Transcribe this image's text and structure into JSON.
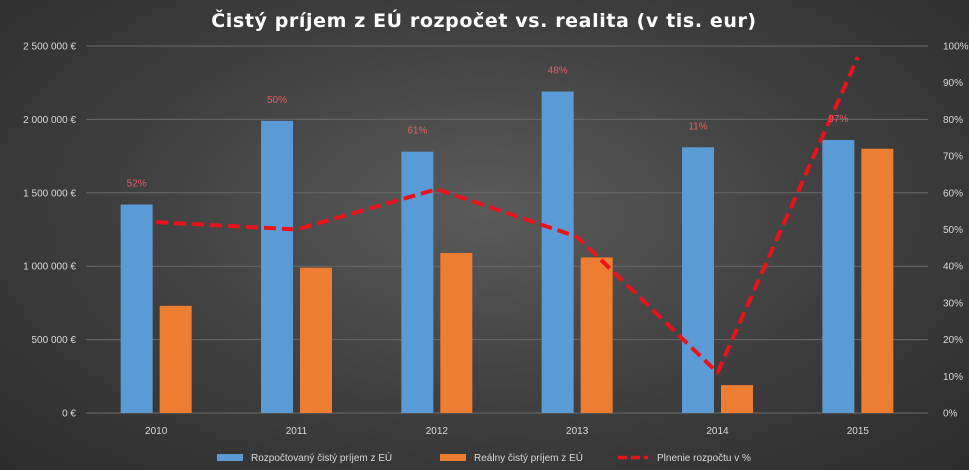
{
  "chart_data": {
    "type": "bar",
    "title": "Čistý príjem z EÚ rozpočet vs. realita (v tis. eur)",
    "categories": [
      "2010",
      "2011",
      "2012",
      "2013",
      "2014",
      "2015"
    ],
    "series": [
      {
        "name": "Rozpočtovaný čistý príjem z EÚ",
        "type": "bar",
        "axis": "left",
        "color": "#5b9bd5",
        "values": [
          1420000,
          1990000,
          1780000,
          2190000,
          1810000,
          1860000
        ]
      },
      {
        "name": "Reálny čistý príjem z EÚ",
        "type": "bar",
        "axis": "left",
        "color": "#ed7d31",
        "values": [
          730000,
          990000,
          1090000,
          1060000,
          190000,
          1800000
        ]
      },
      {
        "name": "Plnenie rozpočtu v %",
        "type": "line",
        "style": "dashed",
        "axis": "right",
        "color": "#e8141c",
        "values": [
          52,
          50,
          61,
          48,
          11,
          97
        ],
        "labels": [
          "52%",
          "50%",
          "61%",
          "48%",
          "11%",
          "97%"
        ]
      }
    ],
    "y_left": {
      "ylim": [
        0,
        2500000
      ],
      "ticks": [
        0,
        500000,
        1000000,
        1500000,
        2000000,
        2500000
      ],
      "tick_labels": [
        "0 €",
        "500 000 €",
        "1 000 000 €",
        "1 500 000 €",
        "2 000 000 €",
        "2 500 000 €"
      ]
    },
    "y_right": {
      "ylim": [
        0,
        100
      ],
      "ticks": [
        0,
        10,
        20,
        30,
        40,
        50,
        60,
        70,
        80,
        90,
        100
      ],
      "tick_labels": [
        "0%",
        "10%",
        "20%",
        "30%",
        "40%",
        "50%",
        "60%",
        "70%",
        "80%",
        "90%",
        "100%"
      ]
    },
    "grid": true,
    "legend_position": "bottom"
  }
}
